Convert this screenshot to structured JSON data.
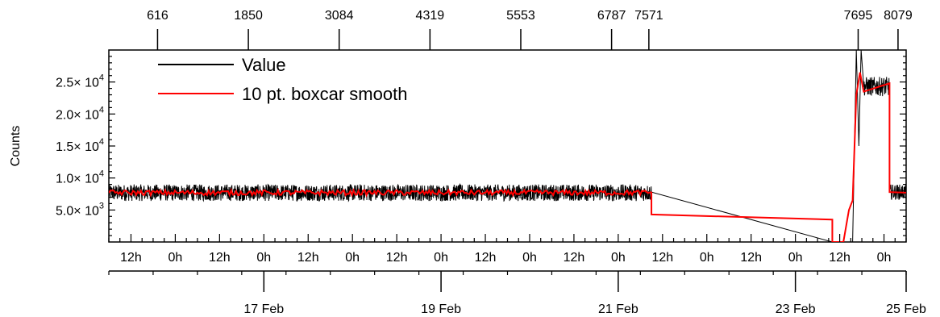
{
  "chart_data": {
    "type": "line",
    "title": "",
    "ylabel": "Counts",
    "xlabel": "",
    "ylim": [
      0,
      30000
    ],
    "yticks": [
      {
        "value": 5000,
        "mantissa": "5.0",
        "exp": "3"
      },
      {
        "value": 10000,
        "mantissa": "1.0",
        "exp": "4"
      },
      {
        "value": 15000,
        "mantissa": "1.5",
        "exp": "4"
      },
      {
        "value": 20000,
        "mantissa": "2.0",
        "exp": "4"
      },
      {
        "value": 25000,
        "mantissa": "2.5",
        "exp": "4"
      }
    ],
    "y_tick_times": "× 10",
    "xlim_hours": [
      0,
      216
    ],
    "x_unit_note": "hours from 15 Feb 06h",
    "hour_ticks": [
      {
        "t": 6,
        "label": "12h"
      },
      {
        "t": 18,
        "label": "0h"
      },
      {
        "t": 30,
        "label": "12h"
      },
      {
        "t": 42,
        "label": "0h"
      },
      {
        "t": 54,
        "label": "12h"
      },
      {
        "t": 66,
        "label": "0h"
      },
      {
        "t": 78,
        "label": "12h"
      },
      {
        "t": 90,
        "label": "0h"
      },
      {
        "t": 102,
        "label": "12h"
      },
      {
        "t": 114,
        "label": "0h"
      },
      {
        "t": 126,
        "label": "12h"
      },
      {
        "t": 138,
        "label": "0h"
      },
      {
        "t": 150,
        "label": "12h"
      },
      {
        "t": 162,
        "label": "0h"
      },
      {
        "t": 174,
        "label": "12h"
      },
      {
        "t": 186,
        "label": "0h"
      },
      {
        "t": 198,
        "label": "12h"
      },
      {
        "t": 210,
        "label": "0h"
      }
    ],
    "date_ticks": [
      {
        "t": 42,
        "label": "17 Feb"
      },
      {
        "t": 90,
        "label": "19 Feb"
      },
      {
        "t": 138,
        "label": "21 Feb"
      },
      {
        "t": 186,
        "label": "23 Feb"
      },
      {
        "t": 234,
        "label": "25 Feb"
      }
    ],
    "index_ticks": [
      {
        "t": 13.2,
        "label": "616"
      },
      {
        "t": 37.8,
        "label": "1850"
      },
      {
        "t": 62.4,
        "label": "3084"
      },
      {
        "t": 87.0,
        "label": "4319"
      },
      {
        "t": 111.6,
        "label": "5553"
      },
      {
        "t": 136.2,
        "label": "6787"
      },
      {
        "t": 146.3,
        "label": "7571"
      },
      {
        "t": 203.0,
        "label": "7695"
      },
      {
        "t": 213.8,
        "label": "8079"
      }
    ],
    "legend": {
      "placement": "top-left"
    },
    "series": [
      {
        "name": "Value",
        "color": "#000000",
        "segments": [
          {
            "t_start": 0,
            "t_end": 147,
            "mean": 7700,
            "noise": 1300
          },
          {
            "line": [
              [
                147,
                7800
              ],
              [
                196,
                0
              ]
            ]
          },
          {
            "spike": [
              [
                201.5,
                0
              ],
              [
                202.5,
                30000
              ],
              [
                203.2,
                15000
              ],
              [
                203.8,
                30000
              ],
              [
                204.5,
                24500
              ]
            ]
          },
          {
            "t_start": 204.5,
            "t_end": 211.5,
            "mean": 24300,
            "noise": 1500
          },
          {
            "t_start": 211.5,
            "t_end": 216,
            "mean": 7800,
            "noise": 1200
          }
        ]
      },
      {
        "name": "10 pt. boxcar smooth",
        "color": "#ff0000",
        "points": [
          [
            0,
            7700
          ],
          [
            147,
            7700
          ],
          [
            147,
            4300
          ],
          [
            196,
            3500
          ],
          [
            196,
            0
          ],
          [
            199,
            0
          ],
          [
            200.5,
            5000
          ],
          [
            201.5,
            6500
          ],
          [
            202.5,
            23000
          ],
          [
            203.5,
            26500
          ],
          [
            204.5,
            23500
          ],
          [
            211.5,
            24800
          ],
          [
            211.5,
            7800
          ],
          [
            216,
            7700
          ]
        ],
        "smooth_noise": 400
      }
    ]
  }
}
